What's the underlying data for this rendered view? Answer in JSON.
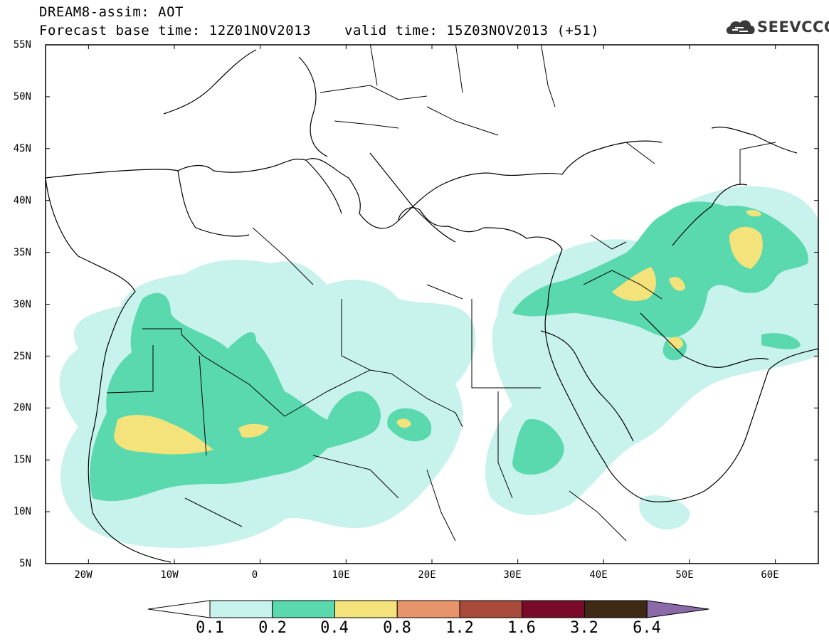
{
  "header": {
    "title": "DREAM8-assim: AOT",
    "base_time": "Forecast base time: 12Z01NOV2013",
    "valid_time": "valid time: 15Z03NOV2013 (+51)"
  },
  "logo": {
    "text": "SEEVCCC",
    "icon": "cloud-logo-icon",
    "color": "#3a3a3a"
  },
  "map": {
    "lat_labels": [
      "55N",
      "50N",
      "45N",
      "40N",
      "35N",
      "30N",
      "25N",
      "20N",
      "15N",
      "10N",
      "5N"
    ],
    "lon_labels": [
      "20W",
      "10W",
      "0",
      "10E",
      "20E",
      "30E",
      "40E",
      "50E",
      "60E"
    ],
    "lat_range": [
      5,
      55
    ],
    "lon_range": [
      -25,
      65
    ]
  },
  "colorbar": {
    "labels": [
      "0.1",
      "0.2",
      "0.4",
      "0.8",
      "1.2",
      "1.6",
      "3.2",
      "6.4"
    ],
    "colors": [
      "#ffffff",
      "#c8f2ec",
      "#5ad8ae",
      "#f3e37a",
      "#e8946a",
      "#a84a3a",
      "#7a0a2a",
      "#3e2a14",
      "#8a6aa8"
    ]
  }
}
